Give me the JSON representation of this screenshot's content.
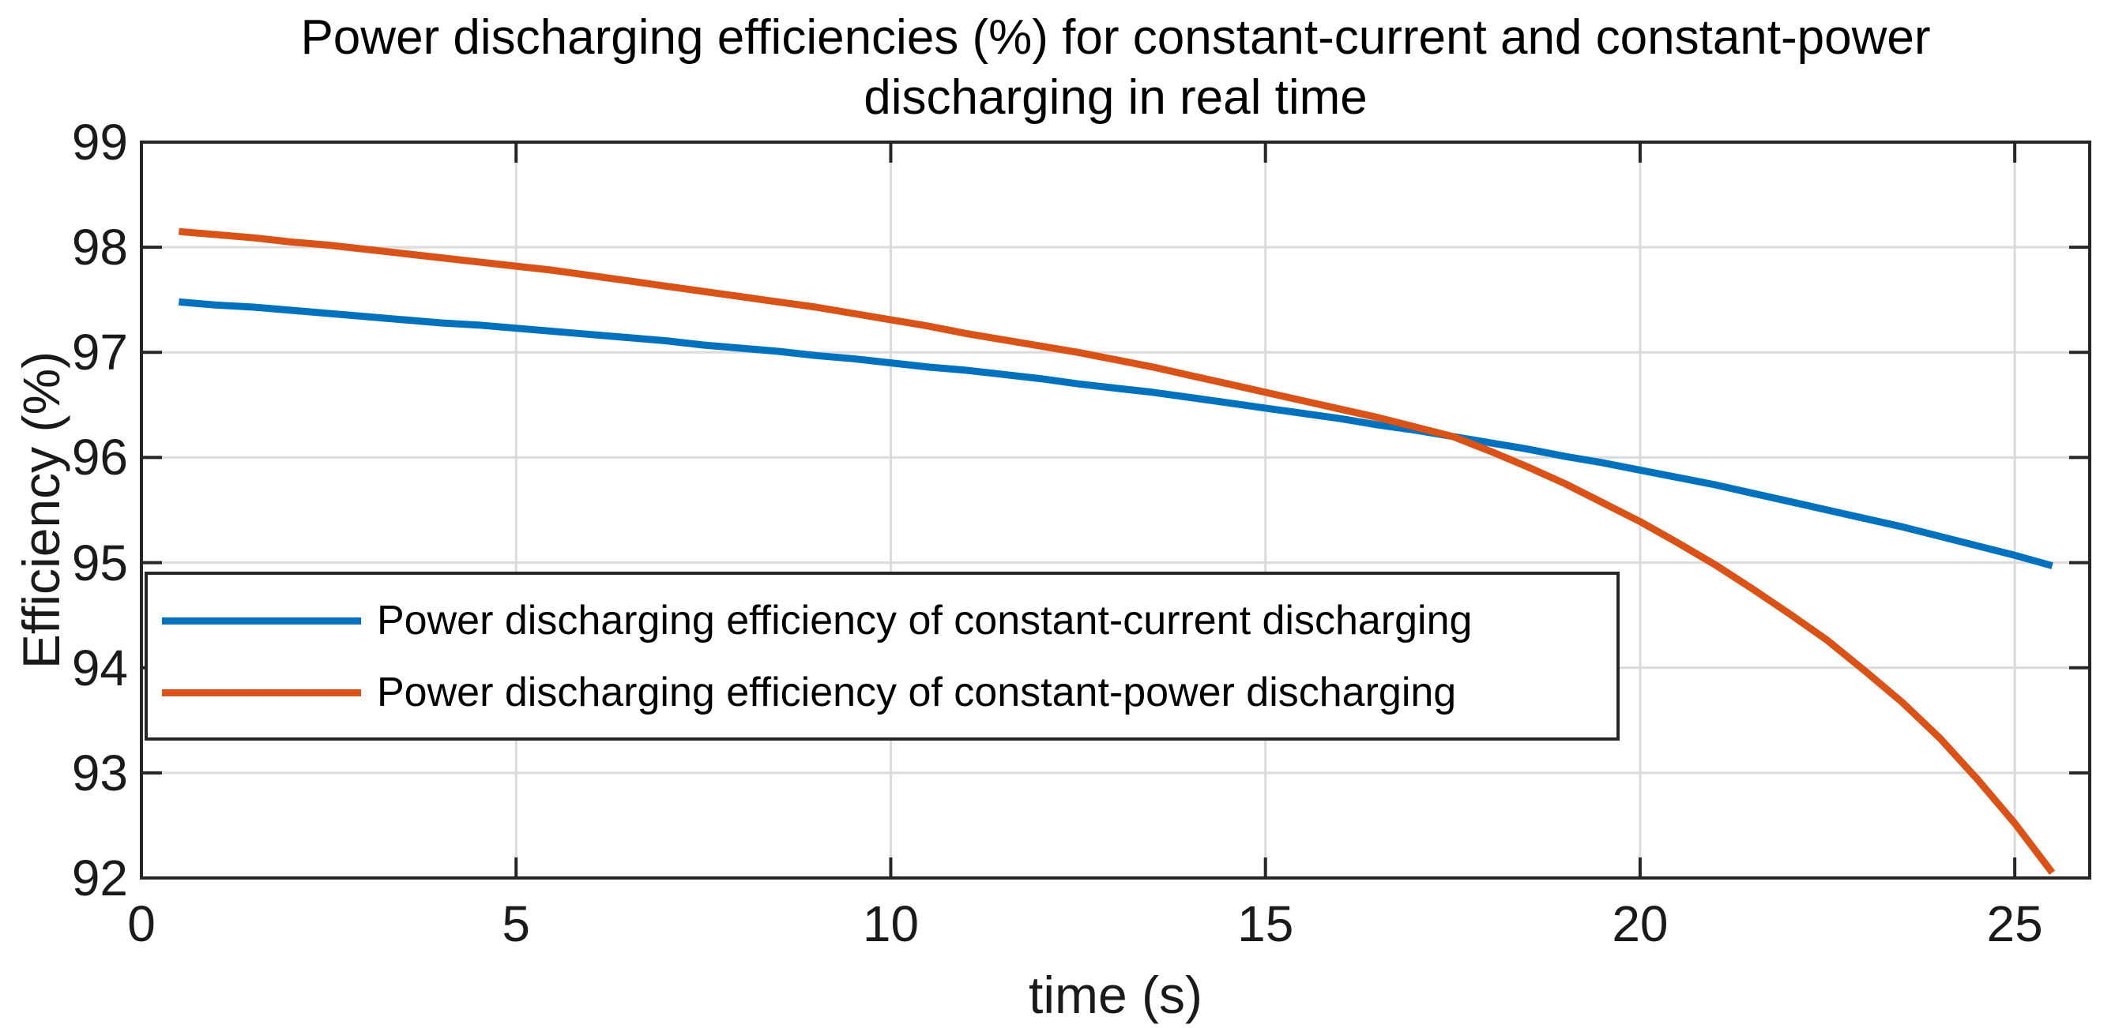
{
  "title": {
    "line1": "Power discharging efficiencies (%) for constant-current and constant-power",
    "line2": "discharging in real time"
  },
  "axes": {
    "xlabel": "time (s)",
    "ylabel": "Efficiency (%)",
    "x_tick_labels": [
      "0",
      "5",
      "10",
      "15",
      "20",
      "25"
    ],
    "y_tick_labels": [
      "92",
      "93",
      "94",
      "95",
      "96",
      "97",
      "98",
      "99"
    ]
  },
  "legend": {
    "items": [
      {
        "label": "Power discharging efficiency of constant-current discharging",
        "color": "#0072BD"
      },
      {
        "label": "Power discharging efficiency of constant-power discharging",
        "color": "#D95319"
      }
    ],
    "position": "lower-left",
    "border_color": "#262626"
  },
  "colors": {
    "axis": "#262626",
    "grid": "#dbdbdb",
    "background": "#ffffff",
    "series_blue": "#0072BD",
    "series_orange": "#D95319"
  },
  "chart_data": {
    "type": "line",
    "title": "Power discharging efficiencies (%) for constant-current and constant-power discharging in real time",
    "xlabel": "time (s)",
    "ylabel": "Efficiency (%)",
    "xlim": [
      0,
      26
    ],
    "ylim": [
      92,
      99
    ],
    "x_ticks": [
      0,
      5,
      10,
      15,
      20,
      25
    ],
    "y_ticks": [
      92,
      93,
      94,
      95,
      96,
      97,
      98,
      99
    ],
    "grid": true,
    "legend_position": "lower left",
    "x": [
      0.5,
      1,
      1.5,
      2,
      2.5,
      3,
      3.5,
      4,
      4.5,
      5,
      5.5,
      6,
      6.5,
      7,
      7.5,
      8,
      8.5,
      9,
      9.5,
      10,
      10.5,
      11,
      11.5,
      12,
      12.5,
      13,
      13.5,
      14,
      14.5,
      15,
      15.5,
      16,
      16.5,
      17,
      17.5,
      18,
      18.5,
      19,
      19.5,
      20,
      20.5,
      21,
      21.5,
      22,
      22.5,
      23,
      23.5,
      24,
      24.5,
      25,
      25.5
    ],
    "series": [
      {
        "name": "Power discharging efficiency of constant-current discharging",
        "color": "#0072BD",
        "values": [
          97.48,
          97.45,
          97.43,
          97.4,
          97.37,
          97.34,
          97.31,
          97.28,
          97.26,
          97.23,
          97.2,
          97.17,
          97.14,
          97.11,
          97.07,
          97.04,
          97.01,
          96.97,
          96.94,
          96.9,
          96.86,
          96.83,
          96.79,
          96.75,
          96.7,
          96.66,
          96.62,
          96.57,
          96.52,
          96.47,
          96.42,
          96.37,
          96.31,
          96.26,
          96.2,
          96.14,
          96.08,
          96.01,
          95.95,
          95.88,
          95.81,
          95.74,
          95.66,
          95.58,
          95.5,
          95.42,
          95.34,
          95.25,
          95.16,
          95.07,
          94.97
        ]
      },
      {
        "name": "Power discharging efficiency of constant-power discharging",
        "color": "#D95319",
        "values": [
          98.15,
          98.12,
          98.09,
          98.05,
          98.02,
          97.98,
          97.94,
          97.9,
          97.86,
          97.82,
          97.78,
          97.73,
          97.68,
          97.63,
          97.58,
          97.53,
          97.48,
          97.43,
          97.37,
          97.31,
          97.25,
          97.18,
          97.12,
          97.06,
          97.0,
          96.93,
          96.86,
          96.78,
          96.7,
          96.62,
          96.54,
          96.46,
          96.38,
          96.29,
          96.2,
          96.06,
          95.91,
          95.75,
          95.57,
          95.39,
          95.19,
          94.98,
          94.75,
          94.51,
          94.26,
          93.97,
          93.67,
          93.33,
          92.94,
          92.52,
          92.05
        ]
      }
    ]
  }
}
